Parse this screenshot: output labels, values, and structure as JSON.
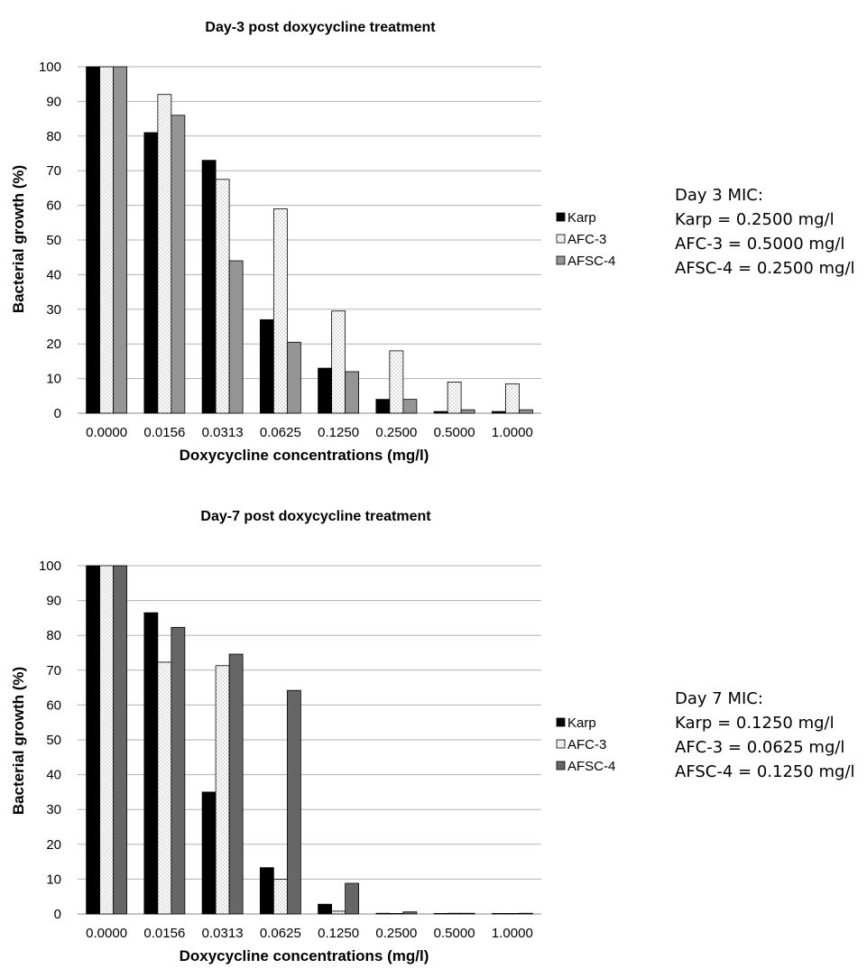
{
  "colors": {
    "karp": "#000000",
    "afc3_fill": "#ffffff",
    "afc3_dots": "#9a9a9a",
    "afsc4_day3": "#959595",
    "afsc4_day7": "#666666",
    "grid": "#b3b3b3"
  },
  "chart_data": [
    {
      "type": "bar",
      "title": "Day-3 post doxycycline treatment",
      "xlabel": "Doxycycline concentrations (mg/l)",
      "ylabel": "Bacterial growth (%)",
      "ylim": [
        0,
        100
      ],
      "yticks": [
        "0",
        "10",
        "20",
        "30",
        "40",
        "50",
        "60",
        "70",
        "80",
        "90",
        "100"
      ],
      "grid": true,
      "legend_position": "right",
      "categories": [
        "0.0000",
        "0.0156",
        "0.0313",
        "0.0625",
        "0.1250",
        "0.2500",
        "0.5000",
        "1.0000"
      ],
      "series": [
        {
          "name": "Karp",
          "values": [
            100,
            81,
            73,
            27,
            13,
            4,
            0.5,
            0.5
          ]
        },
        {
          "name": "AFC-3",
          "values": [
            100,
            92,
            67.5,
            59,
            29.5,
            18,
            9,
            8.5
          ]
        },
        {
          "name": "AFSC-4",
          "values": [
            100,
            86,
            44,
            20.5,
            12,
            4,
            1,
            1
          ]
        }
      ],
      "annotation": [
        "Day 3 MIC:",
        "Karp = 0.2500 mg/l",
        "AFC-3 = 0.5000 mg/l",
        "AFSC-4 = 0.2500 mg/l"
      ]
    },
    {
      "type": "bar",
      "title": "Day-7 post doxycycline treatment",
      "xlabel": "Doxycycline concentrations (mg/l)",
      "ylabel": "Bacterial growth (%)",
      "ylim": [
        0,
        100
      ],
      "yticks": [
        "0",
        "10",
        "20",
        "30",
        "40",
        "50",
        "60",
        "70",
        "80",
        "90",
        "100"
      ],
      "grid": true,
      "legend_position": "right",
      "categories": [
        "0.0000",
        "0.0156",
        "0.0313",
        "0.0625",
        "0.1250",
        "0.2500",
        "0.5000",
        "1.0000"
      ],
      "series": [
        {
          "name": "Karp",
          "values": [
            100,
            86.5,
            35,
            13.3,
            2.8,
            0.2,
            0.1,
            0.1
          ]
        },
        {
          "name": "AFC-3",
          "values": [
            100,
            72.3,
            71.3,
            10,
            0.8,
            0.1,
            0.2,
            0.1
          ]
        },
        {
          "name": "AFSC-4",
          "values": [
            100,
            82.3,
            74.6,
            64.2,
            8.8,
            0.6,
            0.2,
            0.2
          ]
        }
      ],
      "annotation": [
        "Day 7 MIC:",
        "Karp = 0.1250 mg/l",
        "AFC-3 = 0.0625 mg/l",
        "AFSC-4 = 0.1250 mg/l"
      ]
    }
  ]
}
